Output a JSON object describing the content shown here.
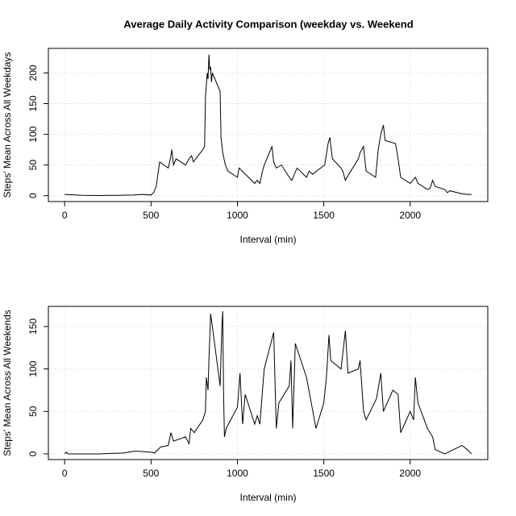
{
  "chart_data": [
    {
      "type": "line",
      "title": "Average Daily Activity Comparison (weekday vs. Weekend",
      "xlabel": "Interval (min)",
      "ylabel": "Steps' Mean Across All Weekdays",
      "x": [
        0,
        100,
        200,
        300,
        400,
        450,
        500,
        515,
        530,
        550,
        600,
        615,
        620,
        630,
        645,
        700,
        720,
        735,
        745,
        800,
        810,
        815,
        825,
        830,
        835,
        840,
        845,
        850,
        855,
        900,
        905,
        915,
        930,
        945,
        1000,
        1010,
        1100,
        1115,
        1130,
        1145,
        1155,
        1200,
        1210,
        1225,
        1255,
        1300,
        1315,
        1345,
        1400,
        1415,
        1435,
        1505,
        1525,
        1535,
        1550,
        1600,
        1610,
        1625,
        1645,
        1700,
        1710,
        1730,
        1745,
        1800,
        1815,
        1830,
        1845,
        1855,
        1915,
        1930,
        1945,
        2000,
        2030,
        2045,
        2100,
        2115,
        2130,
        2145,
        2200,
        2215,
        2230,
        2300,
        2330,
        2355
      ],
      "values": [
        2,
        0.5,
        0.3,
        0.5,
        1,
        2,
        1,
        5,
        15,
        55,
        45,
        65,
        75,
        50,
        60,
        50,
        60,
        65,
        55,
        75,
        80,
        160,
        200,
        190,
        230,
        205,
        210,
        185,
        200,
        170,
        95,
        70,
        50,
        40,
        30,
        45,
        20,
        25,
        20,
        40,
        50,
        80,
        55,
        45,
        50,
        30,
        25,
        45,
        30,
        40,
        35,
        50,
        85,
        95,
        60,
        45,
        40,
        25,
        35,
        60,
        70,
        80,
        40,
        30,
        75,
        100,
        115,
        90,
        85,
        60,
        30,
        20,
        30,
        20,
        10,
        12,
        25,
        15,
        10,
        5,
        8,
        3,
        2,
        2
      ],
      "color": "#000000",
      "xlim": [
        -94.2,
        2449.2
      ],
      "xticks": [
        0,
        500,
        1000,
        1500,
        2000
      ],
      "ylim": [
        -9.6,
        240
      ],
      "yticks": [
        0,
        50,
        100,
        150,
        200
      ],
      "grid": true
    },
    {
      "type": "line",
      "xlabel": "Interval (min)",
      "ylabel": "Steps' Mean Across All Weekends",
      "x": [
        0,
        10,
        20,
        200,
        340,
        400,
        430,
        500,
        520,
        555,
        600,
        615,
        630,
        700,
        720,
        730,
        750,
        800,
        815,
        820,
        830,
        835,
        845,
        855,
        900,
        910,
        915,
        920,
        925,
        935,
        1000,
        1015,
        1030,
        1045,
        1100,
        1115,
        1130,
        1155,
        1210,
        1225,
        1240,
        1300,
        1310,
        1320,
        1335,
        1400,
        1455,
        1500,
        1515,
        1530,
        1540,
        1600,
        1625,
        1640,
        1700,
        1710,
        1730,
        1745,
        1805,
        1830,
        1845,
        1900,
        1930,
        1945,
        2000,
        2020,
        2030,
        2045,
        2100,
        2130,
        2145,
        2200,
        2300,
        2330,
        2355
      ],
      "values": [
        0,
        2,
        0,
        0,
        1,
        3,
        3,
        2,
        1,
        8,
        10,
        25,
        15,
        20,
        12,
        30,
        25,
        40,
        50,
        90,
        75,
        110,
        165,
        150,
        80,
        150,
        168,
        70,
        20,
        30,
        55,
        95,
        35,
        70,
        35,
        45,
        35,
        100,
        143,
        30,
        60,
        80,
        110,
        30,
        130,
        90,
        30,
        60,
        90,
        140,
        110,
        100,
        145,
        95,
        100,
        110,
        50,
        40,
        65,
        95,
        50,
        75,
        70,
        25,
        50,
        40,
        90,
        60,
        30,
        20,
        5,
        0,
        10,
        5,
        0
      ],
      "color": "#000000",
      "xlim": [
        -94.2,
        2449.2
      ],
      "xticks": [
        0,
        500,
        1000,
        1500,
        2000
      ],
      "ylim": [
        -6.7,
        173.7
      ],
      "yticks": [
        0,
        50,
        100,
        150
      ],
      "grid": true
    }
  ]
}
